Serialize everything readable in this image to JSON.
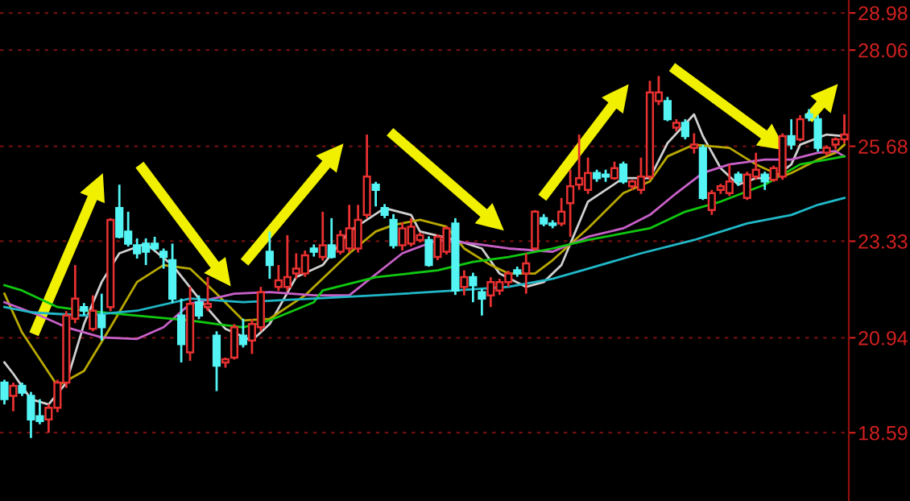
{
  "chart_data": {
    "type": "candlestick",
    "categories": [
      null,
      null,
      null,
      null,
      null,
      null,
      null,
      null,
      null,
      null,
      null,
      null,
      null,
      null,
      null,
      null,
      null,
      null,
      null,
      null,
      null,
      null,
      null,
      null,
      null,
      null,
      null,
      null,
      null,
      null,
      null,
      null,
      null,
      null,
      null,
      null,
      null,
      null,
      null,
      null,
      null,
      null,
      null,
      null,
      null,
      null,
      null,
      null,
      null,
      null,
      null,
      null,
      null,
      null,
      null,
      null,
      null,
      null,
      null,
      null,
      null,
      null,
      null,
      null,
      null,
      null,
      null,
      null,
      null,
      null,
      null,
      null,
      null,
      null,
      null,
      null,
      null,
      null,
      null,
      null,
      null,
      null,
      null,
      null,
      null,
      null,
      null,
      null,
      null,
      null,
      null,
      null,
      null,
      null,
      null,
      null
    ],
    "ohlc": [
      [
        19.83,
        19.9,
        19.29,
        19.42
      ],
      [
        19.5,
        19.83,
        19.12,
        19.75
      ],
      [
        19.75,
        19.83,
        19.5,
        19.58
      ],
      [
        19.5,
        19.6,
        18.46,
        18.92
      ],
      [
        19.0,
        19.42,
        18.8,
        18.88
      ],
      [
        18.92,
        19.3,
        18.59,
        19.21
      ],
      [
        19.21,
        19.9,
        19.1,
        19.83
      ],
      [
        19.83,
        21.6,
        19.7,
        21.49
      ],
      [
        21.41,
        22.74,
        21.3,
        21.91
      ],
      [
        21.7,
        21.8,
        21.5,
        21.61
      ],
      [
        21.16,
        21.99,
        21.1,
        21.61
      ],
      [
        21.49,
        22.03,
        20.87,
        21.2
      ],
      [
        21.7,
        23.9,
        21.6,
        23.86
      ],
      [
        24.15,
        24.73,
        23.4,
        23.44
      ],
      [
        23.57,
        24.06,
        23.2,
        23.27
      ],
      [
        23.23,
        23.4,
        22.9,
        23.03
      ],
      [
        23.27,
        23.4,
        22.74,
        23.07
      ],
      [
        23.27,
        23.44,
        23.1,
        23.15
      ],
      [
        23.07,
        23.15,
        22.65,
        22.94
      ],
      [
        22.86,
        23.27,
        21.8,
        21.91
      ],
      [
        21.49,
        21.91,
        20.33,
        20.78
      ],
      [
        20.58,
        22.2,
        20.37,
        21.78
      ],
      [
        21.82,
        21.99,
        21.4,
        21.49
      ],
      [
        21.7,
        22.44,
        21.6,
        21.78
      ],
      [
        20.99,
        21.1,
        19.62,
        20.25
      ],
      [
        20.33,
        20.45,
        20.2,
        20.41
      ],
      [
        20.45,
        21.28,
        20.4,
        21.2
      ],
      [
        20.99,
        21.41,
        20.7,
        20.78
      ],
      [
        20.87,
        21.4,
        20.54,
        21.28
      ],
      [
        21.2,
        22.2,
        21.1,
        22.07
      ],
      [
        23.07,
        23.57,
        22.4,
        22.74
      ],
      [
        22.2,
        22.74,
        22.1,
        22.36
      ],
      [
        22.2,
        23.48,
        22.1,
        22.44
      ],
      [
        22.53,
        23.03,
        22.4,
        22.65
      ],
      [
        22.53,
        23.1,
        22.45,
        22.98
      ],
      [
        23.15,
        23.25,
        22.95,
        23.07
      ],
      [
        22.94,
        24.06,
        22.85,
        23.23
      ],
      [
        23.23,
        23.9,
        22.9,
        22.94
      ],
      [
        23.07,
        23.6,
        23.0,
        23.48
      ],
      [
        23.15,
        24.23,
        23.05,
        23.65
      ],
      [
        23.15,
        24.23,
        23.05,
        23.86
      ],
      [
        23.98,
        25.97,
        23.9,
        24.93
      ],
      [
        24.73,
        24.8,
        24.19,
        24.6
      ],
      [
        24.15,
        24.25,
        23.9,
        23.98
      ],
      [
        23.86,
        24.0,
        23.15,
        23.23
      ],
      [
        23.23,
        23.8,
        23.1,
        23.65
      ],
      [
        23.27,
        23.9,
        23.2,
        23.69
      ],
      [
        23.36,
        23.55,
        23.3,
        23.48
      ],
      [
        23.36,
        23.45,
        22.7,
        22.74
      ],
      [
        22.94,
        23.5,
        22.86,
        23.44
      ],
      [
        23.07,
        23.7,
        23.0,
        23.65
      ],
      [
        23.77,
        23.9,
        22.0,
        22.11
      ],
      [
        22.2,
        22.61,
        21.99,
        22.44
      ],
      [
        22.44,
        22.55,
        21.82,
        22.24
      ],
      [
        22.07,
        22.15,
        21.49,
        21.91
      ],
      [
        21.99,
        22.44,
        21.7,
        22.32
      ],
      [
        22.11,
        22.4,
        22.0,
        22.32
      ],
      [
        22.32,
        22.6,
        22.2,
        22.53
      ],
      [
        22.61,
        22.7,
        22.45,
        22.53
      ],
      [
        22.53,
        23.03,
        22.03,
        22.78
      ],
      [
        23.15,
        24.1,
        23.1,
        24.06
      ],
      [
        23.9,
        24.0,
        23.7,
        23.77
      ],
      [
        23.77,
        23.85,
        23.65,
        23.73
      ],
      [
        23.77,
        24.4,
        23.7,
        24.06
      ],
      [
        24.27,
        25.1,
        23.44,
        24.69
      ],
      [
        24.73,
        25.97,
        24.6,
        24.89
      ],
      [
        24.6,
        25.4,
        24.5,
        25.02
      ],
      [
        25.02,
        25.1,
        24.8,
        24.89
      ],
      [
        24.98,
        25.1,
        24.8,
        24.93
      ],
      [
        24.89,
        25.3,
        24.85,
        25.14
      ],
      [
        25.23,
        25.3,
        24.75,
        24.81
      ],
      [
        24.69,
        24.85,
        24.6,
        24.81
      ],
      [
        24.6,
        25.4,
        24.5,
        24.93
      ],
      [
        24.93,
        27.3,
        24.85,
        27.01
      ],
      [
        26.8,
        27.42,
        26.7,
        27.01
      ],
      [
        26.8,
        26.9,
        26.3,
        26.35
      ],
      [
        26.14,
        26.35,
        26.05,
        26.26
      ],
      [
        26.26,
        26.35,
        25.85,
        25.93
      ],
      [
        25.64,
        26.0,
        25.5,
        25.72
      ],
      [
        25.64,
        25.72,
        24.35,
        24.4
      ],
      [
        24.1,
        24.6,
        23.98,
        24.52
      ],
      [
        24.6,
        24.75,
        24.5,
        24.69
      ],
      [
        24.52,
        25.23,
        24.45,
        24.81
      ],
      [
        24.98,
        25.05,
        24.7,
        24.81
      ],
      [
        24.4,
        25.05,
        24.35,
        24.98
      ],
      [
        24.93,
        25.52,
        24.85,
        25.1
      ],
      [
        24.98,
        25.05,
        24.6,
        24.81
      ],
      [
        24.85,
        25.2,
        24.8,
        25.14
      ],
      [
        24.93,
        26.0,
        24.85,
        25.93
      ],
      [
        25.93,
        26.35,
        25.6,
        25.72
      ],
      [
        25.85,
        26.45,
        25.8,
        26.35
      ],
      [
        26.47,
        26.6,
        26.3,
        26.39
      ],
      [
        26.35,
        26.45,
        25.55,
        25.64
      ],
      [
        25.52,
        25.7,
        25.45,
        25.64
      ],
      [
        25.72,
        25.9,
        25.6,
        25.85
      ],
      [
        25.85,
        26.47,
        25.75,
        25.97
      ]
    ],
    "series": [
      {
        "type": "line",
        "color": "#d0d0d0",
        "values": [
          20.33,
          20.05,
          null,
          19.42,
          null,
          19.29,
          null,
          19.83,
          null,
          21.28,
          null,
          22.32,
          null,
          23.03,
          null,
          null,
          23.27,
          null,
          null,
          22.74,
          null,
          null,
          21.91,
          null,
          null,
          21.16,
          null,
          null,
          20.87,
          null,
          21.28,
          null,
          null,
          22.44,
          null,
          null,
          22.74,
          null,
          null,
          23.57,
          null,
          null,
          null,
          24.15,
          null,
          null,
          23.98,
          23.57,
          null,
          null,
          null,
          23.36,
          null,
          null,
          23.15,
          null,
          22.53,
          null,
          null,
          22.2,
          null,
          22.32,
          null,
          22.74,
          null,
          null,
          24.31,
          null,
          null,
          null,
          24.89,
          null,
          null,
          24.89,
          null,
          25.76,
          null,
          null,
          26.47,
          25.93,
          null,
          25.14,
          null,
          24.73,
          null,
          24.89,
          null,
          24.89,
          null,
          25.23,
          25.72,
          null,
          null,
          25.97,
          null,
          25.93
        ]
      },
      {
        "type": "line",
        "color": "#b8a800",
        "values": [
          22.03,
          null,
          21.07,
          null,
          null,
          null,
          19.75,
          null,
          null,
          20.12,
          null,
          null,
          21.2,
          null,
          null,
          22.32,
          null,
          null,
          22.74,
          null,
          null,
          22.65,
          null,
          null,
          22.03,
          null,
          null,
          21.37,
          null,
          null,
          21.41,
          null,
          null,
          null,
          21.99,
          22.2,
          null,
          null,
          null,
          23.03,
          null,
          null,
          23.57,
          null,
          23.73,
          null,
          null,
          23.86,
          null,
          null,
          23.69,
          null,
          23.15,
          null,
          null,
          22.74,
          null,
          22.53,
          null,
          null,
          22.53,
          null,
          22.86,
          null,
          null,
          null,
          23.65,
          null,
          null,
          null,
          24.52,
          null,
          null,
          24.81,
          null,
          25.43,
          null,
          null,
          25.72,
          null,
          25.68,
          null,
          25.64,
          null,
          null,
          25.23,
          null,
          null,
          24.93,
          25.02,
          null,
          null,
          25.35,
          null,
          25.52,
          25.72
        ]
      },
      {
        "type": "line",
        "color": "#c860c8",
        "values": [
          21.82,
          null,
          null,
          null,
          21.49,
          null,
          null,
          21.2,
          null,
          null,
          null,
          20.95,
          null,
          null,
          null,
          20.91,
          null,
          null,
          21.2,
          null,
          null,
          21.78,
          null,
          null,
          null,
          null,
          22.03,
          null,
          null,
          null,
          22.07,
          null,
          null,
          null,
          null,
          21.99,
          null,
          null,
          null,
          21.99,
          null,
          null,
          null,
          null,
          null,
          23.03,
          null,
          null,
          null,
          23.36,
          null,
          null,
          null,
          23.27,
          null,
          null,
          null,
          23.15,
          null,
          null,
          null,
          null,
          23.07,
          null,
          null,
          null,
          23.44,
          null,
          null,
          null,
          23.65,
          null,
          null,
          23.98,
          null,
          null,
          24.52,
          null,
          null,
          25.02,
          null,
          null,
          25.23,
          null,
          null,
          null,
          25.35,
          null,
          null,
          25.35,
          null,
          null,
          25.52,
          null,
          25.56,
          25.43
        ]
      },
      {
        "type": "line",
        "color": "#10c810",
        "values": [
          22.24,
          null,
          22.11,
          null,
          null,
          null,
          21.7,
          null,
          null,
          21.61,
          null,
          null,
          null,
          null,
          null,
          21.49,
          null,
          null,
          null,
          null,
          null,
          21.37,
          null,
          null,
          21.28,
          null,
          null,
          21.2,
          null,
          null,
          21.37,
          null,
          null,
          null,
          null,
          21.82,
          22.11,
          null,
          null,
          null,
          null,
          null,
          22.44,
          null,
          null,
          null,
          null,
          null,
          null,
          22.61,
          null,
          null,
          null,
          22.82,
          null,
          null,
          null,
          22.94,
          null,
          null,
          null,
          null,
          23.15,
          null,
          null,
          null,
          23.36,
          null,
          null,
          null,
          null,
          null,
          null,
          23.65,
          null,
          null,
          null,
          24.06,
          null,
          null,
          null,
          24.31,
          null,
          null,
          null,
          null,
          24.73,
          null,
          null,
          null,
          25.23,
          null,
          null,
          25.35,
          null,
          25.43
        ]
      },
      {
        "type": "line",
        "color": "#20b8c8",
        "values": [
          21.7,
          null,
          null,
          21.57,
          null,
          null,
          null,
          null,
          null,
          21.49,
          null,
          null,
          null,
          null,
          null,
          21.61,
          null,
          null,
          null,
          null,
          null,
          21.91,
          null,
          null,
          null,
          null,
          null,
          21.82,
          null,
          null,
          null,
          null,
          null,
          null,
          null,
          21.91,
          null,
          null,
          null,
          null,
          null,
          null,
          21.99,
          null,
          null,
          null,
          null,
          null,
          null,
          null,
          null,
          22.11,
          null,
          null,
          null,
          null,
          null,
          22.2,
          null,
          null,
          null,
          null,
          22.4,
          null,
          null,
          null,
          22.65,
          null,
          null,
          null,
          null,
          null,
          23.03,
          null,
          null,
          null,
          null,
          null,
          23.36,
          null,
          null,
          null,
          null,
          null,
          23.77,
          null,
          null,
          null,
          null,
          23.98,
          null,
          null,
          24.23,
          null,
          null,
          24.4
        ]
      }
    ],
    "ylim": [
      16.9,
      29.3
    ],
    "yticks": [
      18.59,
      20.94,
      23.33,
      25.68,
      28.06,
      28.98
    ],
    "grid": "y",
    "tick_labels": "y"
  }
}
